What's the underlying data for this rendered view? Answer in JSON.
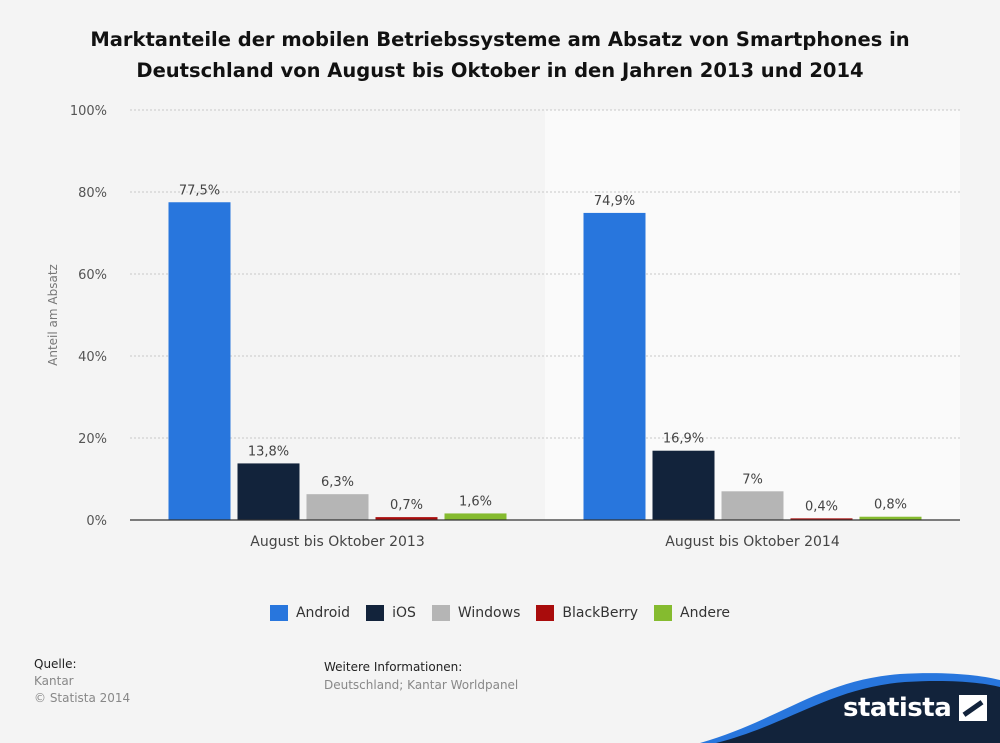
{
  "chart_data": {
    "type": "bar",
    "title": "Marktanteile der mobilen Betriebssysteme am Absatz von Smartphones in Deutschland von August bis Oktober in den Jahren 2013 und 2014",
    "ylabel": "Anteil am Absatz",
    "xlabel": "",
    "ylim": [
      0,
      100
    ],
    "yticks": [
      "0%",
      "20%",
      "40%",
      "60%",
      "80%",
      "100%"
    ],
    "categories": [
      "August bis Oktober 2013",
      "August bis Oktober 2014"
    ],
    "series": [
      {
        "name": "Android",
        "color": "#2876dd",
        "values": [
          77.5,
          74.9
        ],
        "labels": [
          "77,5%",
          "74,9%"
        ]
      },
      {
        "name": "iOS",
        "color": "#12233b",
        "values": [
          13.8,
          16.9
        ],
        "labels": [
          "13,8%",
          "16,9%"
        ]
      },
      {
        "name": "Windows",
        "color": "#b5b5b5",
        "values": [
          6.3,
          7
        ],
        "labels": [
          "6,3%",
          "7%"
        ]
      },
      {
        "name": "BlackBerry",
        "color": "#a90c0c",
        "values": [
          0.7,
          0.4
        ],
        "labels": [
          "0,7%",
          "0,4%"
        ]
      },
      {
        "name": "Andere",
        "color": "#85bb2f",
        "values": [
          1.6,
          0.8
        ],
        "labels": [
          "1,6%",
          "0,8%"
        ]
      }
    ],
    "grid": true,
    "legend": "bottom"
  },
  "footer": {
    "source_label": "Quelle:",
    "source_value": "Kantar",
    "copyright": "© Statista 2014",
    "info_label": "Weitere Informationen:",
    "info_value": "Deutschland; Kantar Worldpanel"
  },
  "brand": {
    "name": "statista",
    "color": "#12233b",
    "accent": "#2876dd"
  }
}
